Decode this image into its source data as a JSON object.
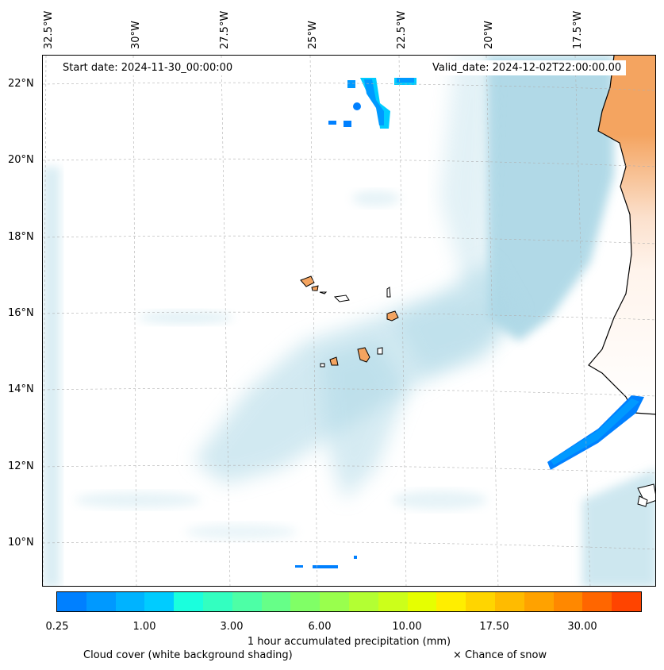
{
  "header": {
    "start_date": "Start date: 2024-11-30_00:00:00",
    "valid_date": "Valid_date: 2024-12-02T22:00:00.00"
  },
  "axes": {
    "longitude_labels": [
      "32.5°W",
      "30°W",
      "27.5°W",
      "25°W",
      "22.5°W",
      "20°W",
      "17.5°W"
    ],
    "latitude_labels": [
      "22°N",
      "20°N",
      "18°N",
      "16°N",
      "14°N",
      "12°N",
      "10°N"
    ]
  },
  "colorbar": {
    "label": "1 hour accumulated precipitation (mm)",
    "tick_labels": [
      "0.25",
      "1.00",
      "3.00",
      "6.00",
      "10.00",
      "17.50",
      "30.00"
    ],
    "colors": [
      "#0080ff",
      "#0099ff",
      "#00b3ff",
      "#00ccff",
      "#1affdd",
      "#33ffc0",
      "#4dffa6",
      "#66ff88",
      "#80ff66",
      "#99ff4d",
      "#b3ff33",
      "#ccff1a",
      "#e6ff00",
      "#ffee00",
      "#ffd500",
      "#ffbb00",
      "#ffa200",
      "#ff8800",
      "#ff6600",
      "#ff4400"
    ]
  },
  "legend": {
    "cloud_cover": "Cloud cover (white background shading)",
    "snow": "× Chance of snow"
  },
  "map_colors": {
    "cloud_shading": "#add8e6",
    "land": "#f4a460",
    "precip_light": "#0080ff"
  }
}
